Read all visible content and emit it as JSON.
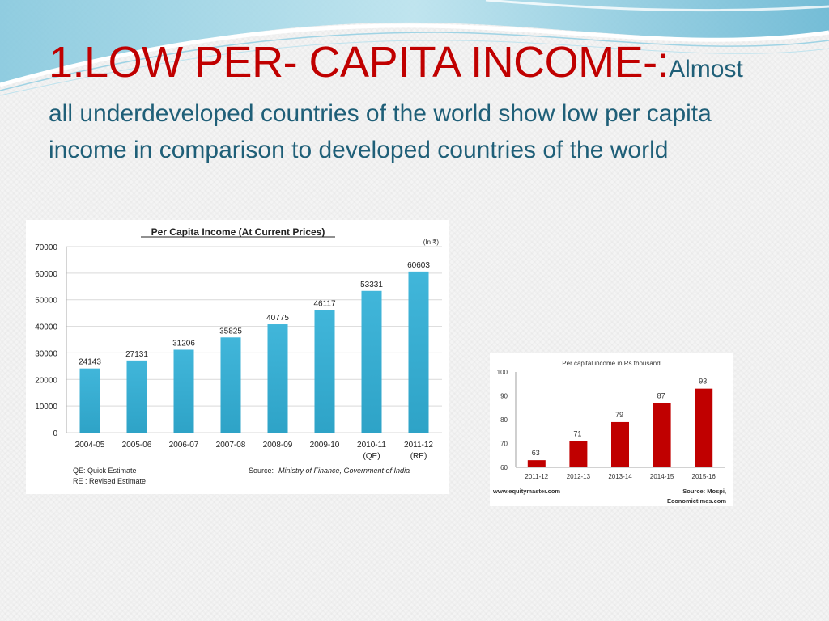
{
  "slide": {
    "title_main": "1.LOW PER- CAPITA INCOME-:",
    "title_lead": "Almost",
    "title_rest": "all underdeveloped countries of the world show low per capita income in comparison to developed countries of the world"
  },
  "colors": {
    "title": "#c00000",
    "body_text": "#1f5f78",
    "bar_blue": "#2ea3c7",
    "bar_red": "#c00000"
  },
  "chart_data": [
    {
      "type": "bar",
      "title": "Per Capita Income (At Current Prices)",
      "unit_note": "(In ₹)",
      "categories": [
        "2004-05",
        "2005-06",
        "2006-07",
        "2007-08",
        "2008-09",
        "2009-10",
        "2010-11\n(QE)",
        "2011-12\n(RE)"
      ],
      "values": [
        24143,
        27131,
        31206,
        35825,
        40775,
        46117,
        53331,
        60603
      ],
      "ylim": [
        0,
        70000
      ],
      "yticks": [
        0,
        10000,
        20000,
        30000,
        40000,
        50000,
        60000,
        70000
      ],
      "grid": true,
      "footnotes": [
        "QE: Quick Estimate",
        "RE : Revised Estimate"
      ],
      "source_label": "Source:",
      "source_text": "Ministry of Finance, Government of India"
    },
    {
      "type": "bar",
      "title": "Per capital income in Rs thousand",
      "categories": [
        "2011-12",
        "2012-13",
        "2013-14",
        "2014-15",
        "2015-16"
      ],
      "values": [
        63,
        71,
        79,
        87,
        93
      ],
      "ylim": [
        60,
        100
      ],
      "yticks": [
        60,
        70,
        80,
        90,
        100
      ],
      "grid": false,
      "footer_left": "www.equitymaster.com",
      "footer_right_1": "Source: Mospi,",
      "footer_right_2": "Economictimes.com"
    }
  ]
}
